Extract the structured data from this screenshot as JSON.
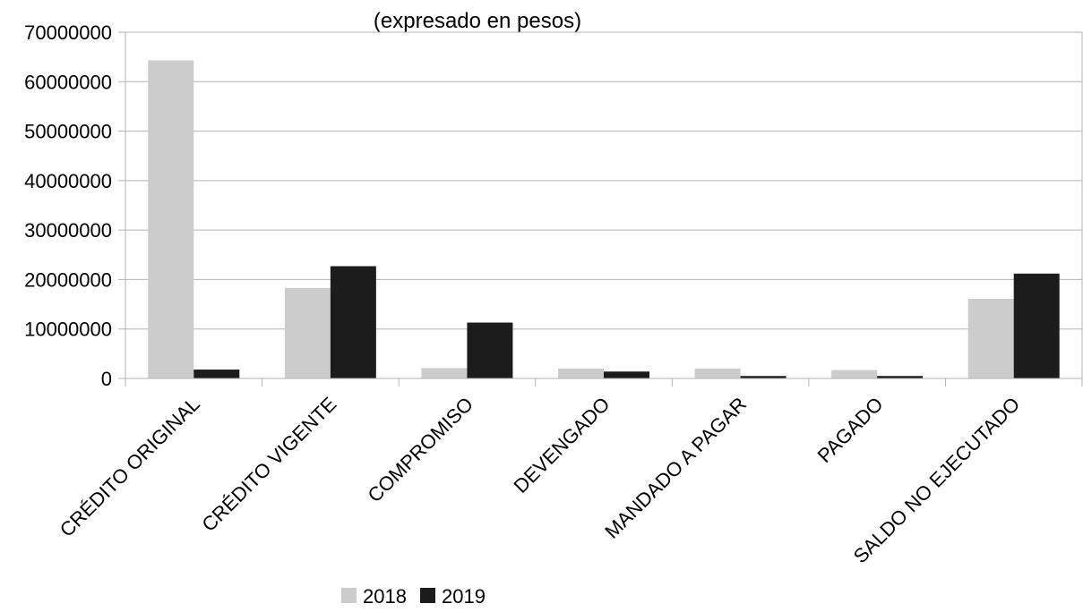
{
  "chart_data": {
    "type": "bar",
    "subtitle": "(expresado en pesos)",
    "categories": [
      "CRÉDITO ORIGINAL",
      "CRÉDITO VIGENTE",
      "COMPROMISO",
      "DEVENGADO",
      "MANDADO A PAGAR",
      "PAGADO",
      "SALDO NO EJECUTADO"
    ],
    "series": [
      {
        "name": "2018",
        "color": "#cccccc",
        "values": [
          64300000,
          18300000,
          2100000,
          2000000,
          2000000,
          1700000,
          16100000
        ]
      },
      {
        "name": "2019",
        "color": "#1c1c1c",
        "values": [
          1800000,
          22700000,
          11300000,
          1400000,
          500000,
          500000,
          21200000
        ]
      }
    ],
    "ylim": [
      0,
      70000000
    ],
    "yticks": [
      "0",
      "10000000",
      "20000000",
      "30000000",
      "40000000",
      "50000000",
      "60000000",
      "70000000"
    ],
    "grid": true,
    "legend_position": "bottom"
  }
}
